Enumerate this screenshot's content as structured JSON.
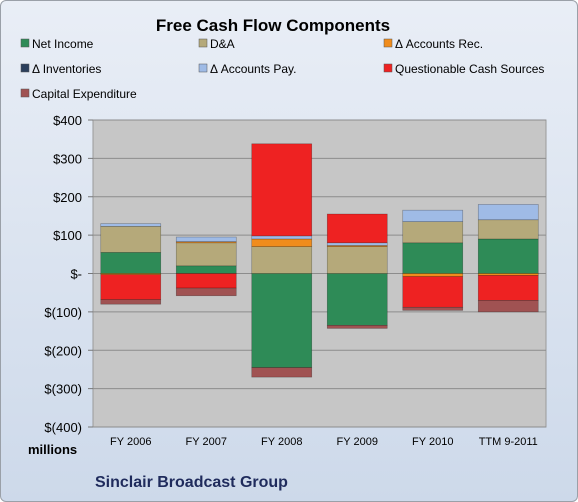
{
  "chart_data": {
    "type": "bar",
    "stacked": true,
    "title": "Free Cash Flow Components",
    "unit_label": "millions",
    "company": "Sinclair Broadcast Group",
    "categories": [
      "FY 2006",
      "FY 2007",
      "FY 2008",
      "FY 2009",
      "FY 2010",
      "TTM 9-2011"
    ],
    "y_ticks": [
      "$400",
      "$300",
      "$200",
      "$100",
      "$-",
      "$(100)",
      "$(200)",
      "$(300)",
      "$(400)"
    ],
    "ylim": [
      -400,
      400
    ],
    "grid": true,
    "legend_position": "top",
    "series": [
      {
        "name": "Net Income",
        "color": "#2e8b57",
        "values": [
          55,
          20,
          -245,
          -135,
          80,
          90
        ]
      },
      {
        "name": "D&A",
        "color": "#b5a97a",
        "values": [
          68,
          60,
          70,
          70,
          55,
          50
        ]
      },
      {
        "name": "Δ Accounts Rec.",
        "color": "#f08c1c",
        "values": [
          -3,
          3,
          20,
          3,
          -8,
          -5
        ]
      },
      {
        "name": "Δ Inventories",
        "color": "#2b3f5c",
        "values": [
          0,
          0,
          0,
          0,
          0,
          0
        ]
      },
      {
        "name": "Δ Accounts Pay.",
        "color": "#9fbbe6",
        "values": [
          7,
          12,
          8,
          7,
          30,
          40
        ]
      },
      {
        "name": "Questionable Cash Sources",
        "color": "#ee2222",
        "values": [
          -65,
          -38,
          240,
          75,
          -80,
          -65
        ]
      },
      {
        "name": "Capital Expenditure",
        "color": "#a05252",
        "values": [
          -12,
          -20,
          -25,
          -8,
          -8,
          -30
        ]
      }
    ]
  }
}
